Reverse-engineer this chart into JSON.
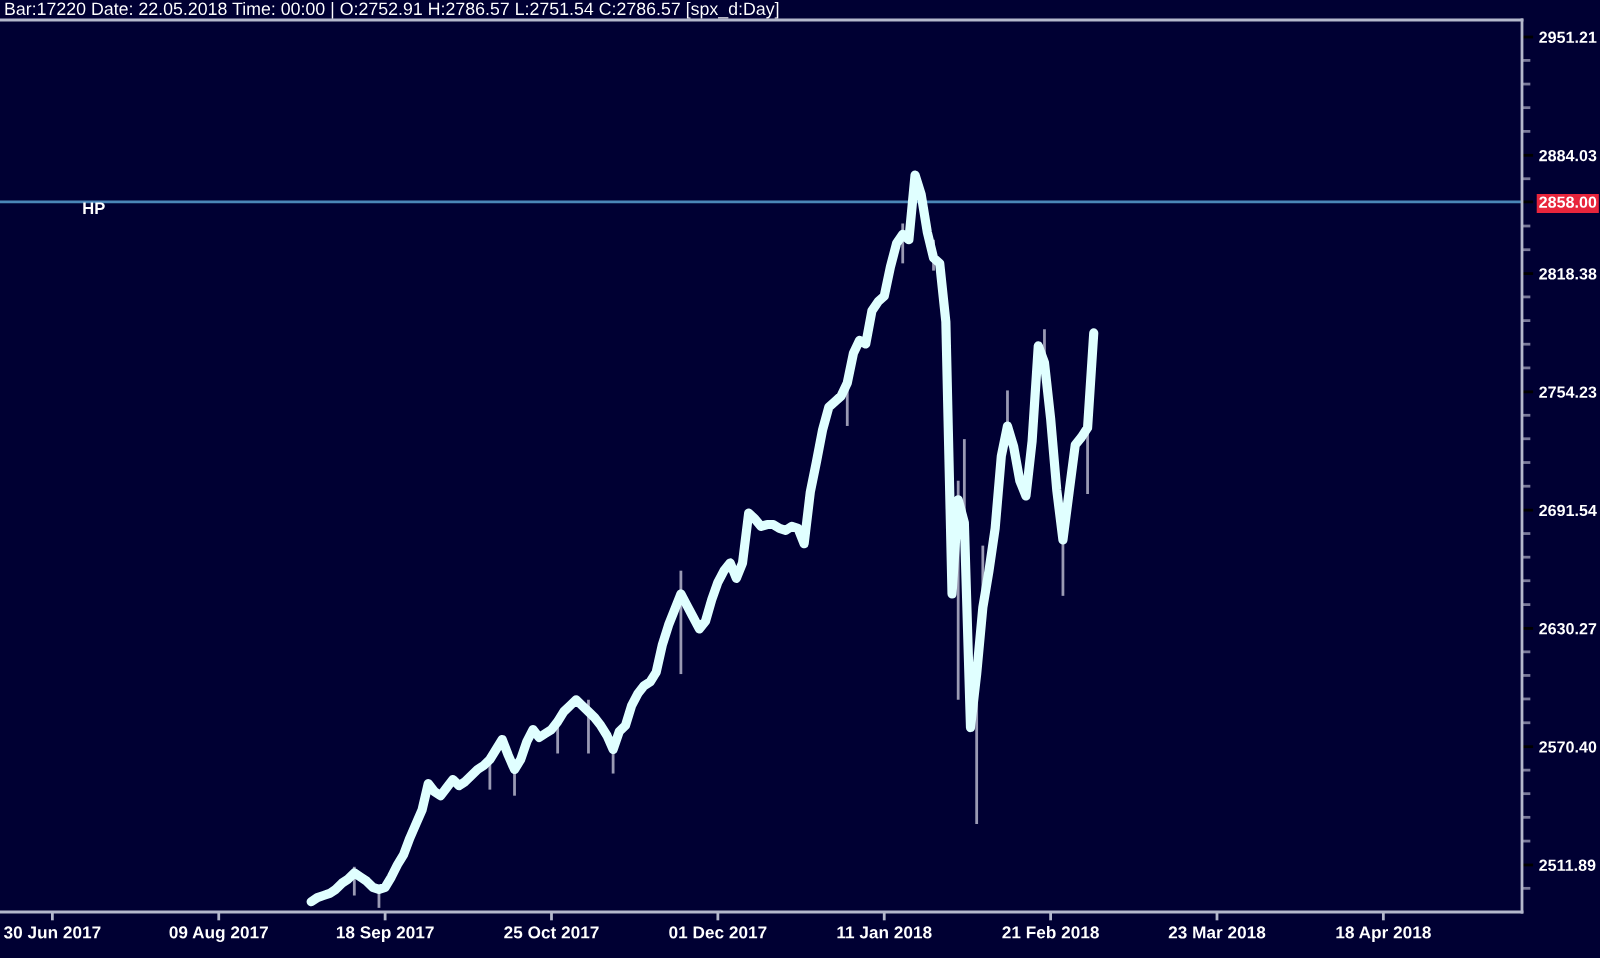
{
  "chart_data": {
    "type": "line",
    "title": "Bar:17220 Date: 22.05.2018 Time: 00:00 | O:2752.91 H:2786.57 L:2751.54 C:2786.57 [spx_d:Day]",
    "log": true,
    "marker": "none",
    "line_style": "solid",
    "categories": [
      null,
      null,
      null,
      null,
      null,
      null,
      null,
      null,
      "30 Jun 2017",
      null,
      null,
      null,
      null,
      null,
      null,
      null,
      null,
      null,
      null,
      null,
      null,
      null,
      null,
      null,
      null,
      null,
      null,
      null,
      null,
      null,
      null,
      null,
      null,
      null,
      null,
      "09 Aug 2017",
      null,
      null,
      null,
      null,
      null,
      null,
      null,
      null,
      null,
      null,
      null,
      null,
      null,
      null,
      null,
      null,
      null,
      null,
      null,
      null,
      null,
      null,
      null,
      null,
      null,
      null,
      "18 Sep 2017",
      null,
      null,
      null,
      null,
      null,
      null,
      null,
      null,
      null,
      null,
      null,
      null,
      null,
      null,
      null,
      null,
      null,
      null,
      null,
      null,
      null,
      null,
      null,
      null,
      null,
      null,
      "25 Oct 2017",
      null,
      null,
      null,
      null,
      null,
      null,
      null,
      null,
      null,
      null,
      null,
      null,
      null,
      null,
      null,
      null,
      null,
      null,
      null,
      null,
      null,
      null,
      null,
      null,
      null,
      null,
      "01 Dec 2017",
      null,
      null,
      null,
      null,
      null,
      null,
      null,
      null,
      null,
      null,
      null,
      null,
      null,
      null,
      null,
      null,
      null,
      null,
      null,
      null,
      null,
      null,
      null,
      null,
      null,
      null,
      "11 Jan 2018",
      null,
      null,
      null,
      null,
      null,
      null,
      null,
      null,
      null,
      null,
      null,
      null,
      null,
      null,
      null,
      null,
      null,
      null,
      null,
      null,
      null,
      null,
      null,
      null,
      null,
      null,
      "21 Feb 2018",
      null,
      null,
      null,
      null,
      null,
      null,
      null,
      null,
      null,
      null,
      null,
      null,
      null,
      null,
      null,
      null,
      null,
      null,
      null,
      null,
      null,
      null,
      null,
      null,
      null,
      null,
      "23 Mar 2018",
      null,
      null,
      null,
      null,
      null,
      null,
      null,
      null,
      null,
      null,
      null,
      null,
      null,
      null,
      null,
      null,
      null,
      null,
      null,
      null,
      null,
      null,
      null,
      null,
      null,
      null,
      "18 Apr 2018",
      null,
      null,
      null,
      null,
      null,
      null,
      null,
      null,
      null,
      null,
      null,
      null,
      null,
      null,
      null,
      null,
      null,
      null,
      null,
      null,
      null,
      null
    ],
    "ylim": [
      2489,
      2961
    ],
    "yticks": [
      {
        "value": 2500.5,
        "label": null
      },
      2511.89,
      {
        "value": 2523.6,
        "label": null
      },
      {
        "value": 2535.3,
        "label": null
      },
      {
        "value": 2547.0,
        "label": null
      },
      {
        "value": 2558.7,
        "label": null
      },
      {
        "value": 2570.4,
        "label": "2570.40"
      },
      {
        "value": 2582.4,
        "label": null
      },
      {
        "value": 2594.4,
        "label": null
      },
      {
        "value": 2606.3,
        "label": null
      },
      {
        "value": 2618.3,
        "label": null
      },
      2630.27,
      {
        "value": 2642.5,
        "label": null
      },
      {
        "value": 2654.8,
        "label": null
      },
      {
        "value": 2667.0,
        "label": null
      },
      {
        "value": 2679.3,
        "label": null
      },
      2691.54,
      {
        "value": 2704.1,
        "label": null
      },
      {
        "value": 2716.6,
        "label": null
      },
      {
        "value": 2729.2,
        "label": null
      },
      {
        "value": 2741.7,
        "label": null
      },
      2754.23,
      {
        "value": 2767.1,
        "label": null
      },
      {
        "value": 2779.9,
        "label": null
      },
      {
        "value": 2792.7,
        "label": null
      },
      {
        "value": 2805.6,
        "label": null
      },
      2818.38,
      {
        "value": 2831.5,
        "label": null
      },
      {
        "value": 2844.6,
        "label": null
      },
      {
        "value": 2858.0,
        "label": "2858.00"
      },
      {
        "value": 2870.9,
        "label": null
      },
      2884.03,
      {
        "value": 2897.5,
        "label": null
      },
      {
        "value": 2910.9,
        "label": null
      },
      {
        "value": 2924.3,
        "label": null
      },
      {
        "value": 2937.8,
        "label": null
      },
      2951.21
    ],
    "ref_lines": [
      {
        "axis": "y",
        "value": 2858.0,
        "label": "HP",
        "color": "#4a86b8"
      }
    ],
    "series": [
      {
        "color": "#e0ffff",
        "values": [
          null,
          null,
          null,
          null,
          null,
          null,
          null,
          null,
          null,
          null,
          null,
          null,
          null,
          null,
          null,
          null,
          null,
          null,
          null,
          null,
          null,
          null,
          null,
          null,
          null,
          null,
          null,
          null,
          null,
          null,
          null,
          null,
          null,
          null,
          null,
          null,
          null,
          null,
          null,
          null,
          null,
          null,
          null,
          null,
          null,
          null,
          null,
          null,
          null,
          null,
          2494,
          2496,
          2497,
          2498,
          2500,
          2503,
          2505,
          2508,
          2506,
          2504,
          2501,
          2500,
          2501,
          2506,
          2512,
          2517,
          2525,
          2532,
          2539,
          2552,
          2548,
          2546,
          2550,
          2554,
          2551,
          2553,
          2556,
          2559,
          2561,
          2564,
          2569,
          2574,
          2566,
          2559,
          2564,
          2573,
          2579,
          2575,
          2577,
          2579,
          2583,
          2588,
          2591,
          2594,
          2591,
          2588,
          2585,
          2581,
          2576,
          2569,
          2578,
          2581,
          2591,
          2597,
          2601,
          2603,
          2608,
          2622,
          2632,
          2640,
          2648,
          2642,
          2636,
          2630,
          2634,
          2645,
          2654,
          2660,
          2664,
          2656,
          2664,
          2690,
          2687,
          2683,
          2684,
          2684,
          2682,
          2681,
          2683,
          2682,
          2674,
          2701,
          2717,
          2734,
          2746,
          2749,
          2752,
          2759,
          2775,
          2782,
          2780,
          2798,
          2803,
          2806,
          2822,
          2835,
          2840,
          2837,
          2873,
          2862,
          2841,
          2827,
          2824,
          2792,
          2648,
          2697,
          2685,
          2580,
          2607,
          2641,
          2660,
          2682,
          2720,
          2736,
          2725,
          2707,
          2699,
          2728,
          2779,
          2770,
          2740,
          2702,
          2676,
          2701,
          2726,
          2730,
          2735,
          2786,
          null,
          null,
          null,
          null,
          null,
          null,
          null,
          null,
          null,
          null,
          null,
          null,
          null,
          null,
          null,
          null,
          null,
          null,
          null,
          null,
          null,
          null,
          null,
          null,
          null,
          null,
          null,
          null,
          null,
          null,
          null,
          null,
          null,
          null,
          null,
          null,
          null,
          null,
          null,
          null,
          null,
          null,
          null,
          null,
          null,
          null,
          null,
          null,
          null,
          null,
          null,
          null,
          null,
          null,
          null,
          null,
          null,
          null,
          null,
          null,
          null,
          null,
          null,
          null,
          null,
          null,
          null,
          null,
          null
        ],
        "errors": [
          null,
          null,
          null,
          null,
          null,
          null,
          null,
          null,
          null,
          null,
          null,
          null,
          null,
          null,
          null,
          null,
          null,
          null,
          null,
          null,
          null,
          null,
          null,
          null,
          null,
          null,
          null,
          null,
          null,
          null,
          null,
          null,
          null,
          null,
          null,
          null,
          null,
          null,
          null,
          null,
          null,
          null,
          null,
          null,
          null,
          null,
          null,
          null,
          null,
          null,
          null,
          null,
          null,
          null,
          null,
          null,
          null,
          [
            2497,
            2511
          ],
          null,
          null,
          null,
          [
            2491,
            2501
          ],
          null,
          null,
          null,
          null,
          null,
          null,
          null,
          null,
          null,
          null,
          null,
          null,
          null,
          null,
          null,
          null,
          null,
          [
            2549,
            2566
          ],
          null,
          null,
          null,
          [
            2546,
            2563
          ],
          null,
          null,
          null,
          null,
          null,
          null,
          [
            2567,
            2585
          ],
          null,
          null,
          null,
          null,
          [
            2567,
            2594
          ],
          null,
          null,
          null,
          [
            2557,
            2574
          ],
          null,
          null,
          null,
          null,
          null,
          null,
          null,
          null,
          null,
          null,
          [
            2607,
            2660
          ],
          null,
          null,
          null,
          null,
          null,
          null,
          null,
          null,
          null,
          null,
          null,
          null,
          null,
          null,
          null,
          null,
          null,
          null,
          null,
          null,
          null,
          null,
          null,
          null,
          null,
          null,
          [
            2736,
            2762
          ],
          null,
          null,
          null,
          null,
          null,
          null,
          null,
          null,
          [
            2824,
            2846
          ],
          null,
          null,
          null,
          null,
          [
            2820,
            2837
          ],
          null,
          null,
          null,
          [
            2594,
            2707
          ],
          [
            2680,
            2729
          ],
          null,
          [
            2532,
            2614
          ],
          [
            2635,
            2673
          ],
          null,
          null,
          null,
          [
            2728,
            2755
          ],
          null,
          null,
          null,
          null,
          null,
          [
            2765,
            2788
          ],
          null,
          null,
          [
            2647,
            2682
          ],
          null,
          null,
          null,
          [
            2700,
            2738
          ],
          null,
          null,
          null,
          null,
          null,
          null,
          null,
          null,
          null,
          null,
          null,
          null,
          null,
          null,
          null,
          null,
          null,
          null,
          null,
          null,
          null,
          null,
          null,
          null,
          null,
          null,
          null,
          null,
          null,
          null,
          null,
          null,
          null,
          null,
          null,
          null,
          null,
          null,
          null,
          null,
          null,
          null,
          null,
          null,
          null,
          null,
          null,
          null,
          null,
          null,
          null,
          null,
          null,
          null,
          null,
          null,
          null,
          null,
          null,
          null,
          null,
          null,
          null,
          null,
          null,
          null,
          null,
          null,
          null,
          null
        ]
      }
    ]
  }
}
